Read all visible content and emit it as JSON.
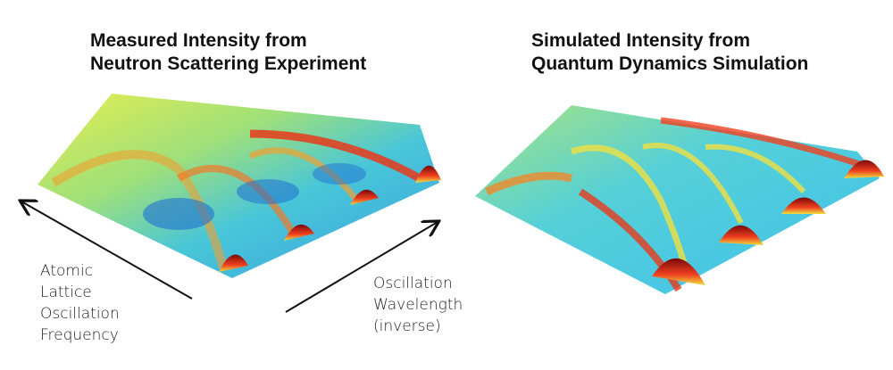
{
  "left_panel": {
    "title_lines": [
      "Measured Intensity from",
      "Neutron Scattering Experiment"
    ]
  },
  "right_panel": {
    "title_lines": [
      "Simulated Intensity from",
      "Quantum Dynamics Simulation"
    ]
  },
  "axis_labels": {
    "frequency_lines": [
      "Atomic",
      "Lattice",
      "Oscillation",
      "Frequency"
    ],
    "wavelength_lines": [
      "Oscillation",
      "Wavelength",
      "(inverse)"
    ]
  },
  "colors": {
    "low": "#2aa8e8",
    "mid": "#e8f04a",
    "high": "#8b0a0a",
    "accent_red": "#e83a1a"
  }
}
